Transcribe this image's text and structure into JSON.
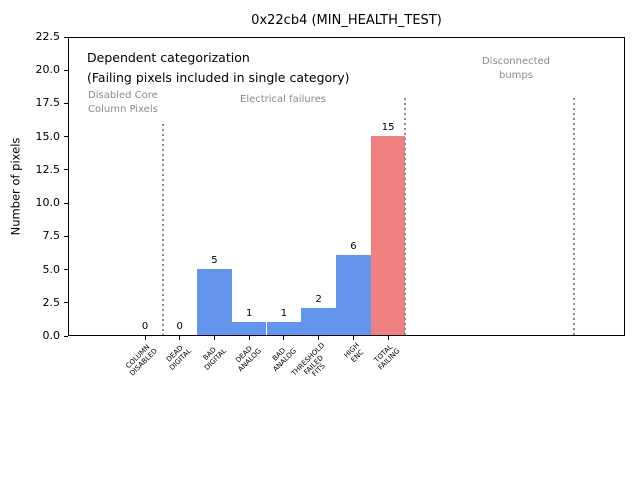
{
  "figure": {
    "title": "0x22cb4 (MIN_HEALTH_TEST)",
    "ylabel": "Number of pixels"
  },
  "annotations": {
    "dependent": "Dependent categorization\n(Failing pixels included in single category)",
    "disabled_core": "Disabled Core\nColumn Pixels",
    "electrical": "Electrical failures",
    "disconnected": "Disconnected\nbumps"
  },
  "colors": {
    "bar_blue": "#6495ED",
    "bar_red": "#F08080",
    "annotation_gray": "#8a8a8a",
    "separator_gray": "#8c8c8c"
  },
  "chart_data": {
    "type": "bar",
    "title": "0x22cb4 (MIN_HEALTH_TEST)",
    "xlabel": "",
    "ylabel": "Number of pixels",
    "ylim": [
      0,
      22.5
    ],
    "ytick_step": 2.5,
    "grid": false,
    "legend": false,
    "categories": [
      "COLUMN\nDISABLED",
      "DEAD\nDIGITAL",
      "BAD\nDIGITAL",
      "DEAD\nANALOG",
      "BAD\nANALOG",
      "THRESHOLD\nFAILED\nFITS",
      "HIGH\nENC",
      "TOTAL\nFAILING"
    ],
    "values": [
      0,
      0,
      5,
      1,
      1,
      2,
      6,
      15
    ],
    "bar_value_labels": [
      "0",
      "0",
      "5",
      "1",
      "1",
      "2",
      "6",
      "15"
    ],
    "bar_colors": [
      "#6495ED",
      "#6495ED",
      "#6495ED",
      "#6495ED",
      "#6495ED",
      "#6495ED",
      "#6495ED",
      "#F08080"
    ],
    "separators": [
      {
        "x": 0.5,
        "ymax": 16
      },
      {
        "x": 7.45,
        "ymax": 18
      },
      {
        "x": 12.33,
        "ymax": 18
      }
    ]
  }
}
